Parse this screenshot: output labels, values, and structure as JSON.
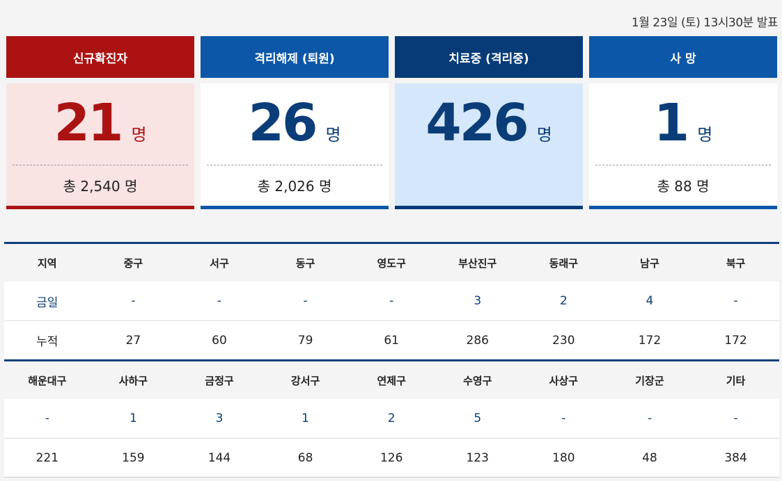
{
  "date": "1월 23일 (토) 13시30분 발표",
  "cards": [
    {
      "title": "신규확진자",
      "value": "21",
      "unit": "명",
      "total": "총 2,540 명"
    },
    {
      "title": "격리해제 (퇴원)",
      "value": "26",
      "unit": "명",
      "total": "총 2,026 명"
    },
    {
      "title": "치료중 (격리중)",
      "value": "426",
      "unit": "명",
      "total": ""
    },
    {
      "title": "사 망",
      "value": "1",
      "unit": "명",
      "total": "총 88 명"
    }
  ],
  "table1": {
    "header": [
      "지역",
      "중구",
      "서구",
      "동구",
      "영도구",
      "부산진구",
      "동래구",
      "남구",
      "북구"
    ],
    "today": [
      "금일",
      "-",
      "-",
      "-",
      "-",
      "3",
      "2",
      "4",
      "-"
    ],
    "cumulative": [
      "누적",
      "27",
      "60",
      "79",
      "61",
      "286",
      "230",
      "172",
      "172"
    ]
  },
  "table2": {
    "header": [
      "해운대구",
      "사하구",
      "금정구",
      "강서구",
      "연제구",
      "수영구",
      "사상구",
      "기장군",
      "기타"
    ],
    "today": [
      "-",
      "1",
      "3",
      "1",
      "2",
      "5",
      "-",
      "-",
      "-"
    ],
    "cumulative": [
      "221",
      "159",
      "144",
      "68",
      "126",
      "123",
      "180",
      "48",
      "384"
    ]
  },
  "colors": {
    "new": "#ab1212",
    "released": "#0c57a8",
    "treating": "#063b78",
    "death": "#0c57a8",
    "navy": "#0b3d78"
  }
}
